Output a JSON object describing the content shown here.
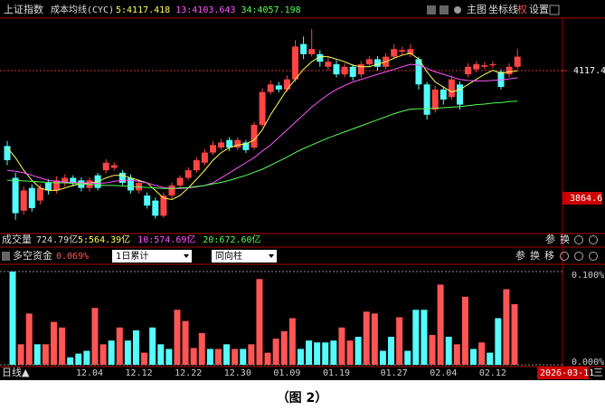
{
  "header": {
    "symbol": "上证指数",
    "indicator": "成本均线(CYC)",
    "buttons": [
      "主图",
      "坐标线",
      "权",
      "设置"
    ]
  },
  "volume_header": {
    "title": "成交量",
    "value": "724.79亿",
    "mas": [
      {
        "label": "5:564.39亿",
        "color": "#ffff55"
      },
      {
        "label": "10:574.69亿",
        "color": "#ff55ff"
      },
      {
        "label": "20:672.60亿",
        "color": "#55ff55"
      }
    ],
    "tools": [
      "参",
      "换"
    ]
  },
  "chart_data": [
    {
      "type": "candlestick",
      "up_color": "#ff4444",
      "down_color": "#54fcfc",
      "categories": [
        null,
        null,
        null,
        null,
        null,
        null,
        null,
        null,
        null,
        null,
        "12.04",
        null,
        null,
        null,
        null,
        null,
        "12.12",
        null,
        null,
        null,
        null,
        null,
        "12.22",
        null,
        null,
        null,
        null,
        null,
        "12.30",
        null,
        null,
        null,
        null,
        null,
        "01.09",
        null,
        null,
        null,
        null,
        null,
        "01.19",
        null,
        null,
        null,
        null,
        null,
        null,
        "01.27",
        null,
        null,
        null,
        null,
        null,
        "02.04",
        null,
        null,
        null,
        null,
        null,
        "02.12",
        null,
        null,
        null
      ],
      "open": [
        3968,
        3905,
        3840,
        3885,
        3860,
        3895,
        3880,
        3895,
        3905,
        3900,
        3885,
        3910,
        3920,
        3925,
        3915,
        3905,
        3880,
        3870,
        3860,
        3830,
        3870,
        3890,
        3905,
        3920,
        3935,
        3955,
        3965,
        3980,
        3965,
        3975,
        3965,
        4010,
        4075,
        4088,
        4080,
        4100,
        4170,
        4150,
        4150,
        4125,
        4130,
        4110,
        4125,
        4110,
        4130,
        4140,
        4125,
        4145,
        4155,
        4150,
        4140,
        4090,
        4040,
        4080,
        4065,
        4090,
        4110,
        4120,
        4125,
        4128,
        4115,
        4110,
        4125
      ],
      "high": [
        3978,
        3915,
        3888,
        3892,
        3892,
        3902,
        3908,
        3912,
        3910,
        3906,
        3906,
        3915,
        3942,
        3936,
        3920,
        3912,
        3902,
        3876,
        3866,
        3876,
        3896,
        3910,
        3926,
        3946,
        3962,
        3978,
        3982,
        3986,
        3986,
        3980,
        4016,
        4082,
        4098,
        4095,
        4108,
        4178,
        4185,
        4200,
        4158,
        4145,
        4138,
        4132,
        4130,
        4136,
        4146,
        4146,
        4152,
        4170,
        4165,
        4170,
        4145,
        4095,
        4088,
        4086,
        4108,
        4096,
        4132,
        4136,
        4134,
        4136,
        4120,
        4132,
        4160
      ],
      "low": [
        3930,
        3822,
        3832,
        3838,
        3852,
        3872,
        3874,
        3888,
        3888,
        3878,
        3878,
        3880,
        3914,
        3920,
        3890,
        3874,
        3874,
        3844,
        3824,
        3826,
        3864,
        3885,
        3900,
        3915,
        3930,
        3950,
        3960,
        3958,
        3960,
        3954,
        3960,
        4005,
        4070,
        4074,
        4075,
        4095,
        4140,
        4145,
        4125,
        4118,
        4104,
        4104,
        4098,
        4104,
        4124,
        4118,
        4120,
        4140,
        4148,
        4144,
        4080,
        4020,
        4034,
        4050,
        4060,
        4040,
        4104,
        4114,
        4120,
        4122,
        4080,
        4104,
        4120
      ],
      "close": [
        3940,
        3835,
        3880,
        3845,
        3885,
        3880,
        3900,
        3905,
        3895,
        3885,
        3900,
        3885,
        3935,
        3930,
        3895,
        3880,
        3895,
        3850,
        3830,
        3870,
        3890,
        3905,
        3920,
        3940,
        3955,
        3970,
        3975,
        3965,
        3980,
        3960,
        4010,
        4075,
        4090,
        4080,
        4100,
        4165,
        4150,
        4160,
        4135,
        4135,
        4110,
        4125,
        4105,
        4130,
        4140,
        4125,
        4145,
        4160,
        4158,
        4160,
        4090,
        4030,
        4080,
        4060,
        4100,
        4050,
        4125,
        4130,
        4128,
        4130,
        4085,
        4125,
        4145
      ],
      "series": [
        {
          "name": "5:4117.418",
          "color": "#ffff55",
          "values": [
            3965,
            3945,
            3920,
            3900,
            3885,
            3880,
            3880,
            3885,
            3890,
            3893,
            3895,
            3897,
            3905,
            3910,
            3910,
            3905,
            3900,
            3895,
            3880,
            3865,
            3862,
            3870,
            3885,
            3902,
            3920,
            3940,
            3955,
            3965,
            3970,
            3972,
            3980,
            4000,
            4030,
            4055,
            4080,
            4100,
            4120,
            4135,
            4145,
            4145,
            4140,
            4135,
            4128,
            4125,
            4125,
            4130,
            4135,
            4142,
            4148,
            4152,
            4140,
            4115,
            4095,
            4085,
            4075,
            4080,
            4090,
            4100,
            4110,
            4118,
            4112,
            4115,
            4117
          ]
        },
        {
          "name": "13:4103.643",
          "color": "#ff55ff",
          "values": [
            3920,
            3918,
            3915,
            3910,
            3905,
            3900,
            3898,
            3897,
            3896,
            3895,
            3895,
            3894,
            3895,
            3898,
            3900,
            3900,
            3898,
            3895,
            3890,
            3886,
            3884,
            3884,
            3885,
            3887,
            3890,
            3895,
            3905,
            3915,
            3925,
            3935,
            3945,
            3958,
            3970,
            3985,
            4000,
            4015,
            4030,
            4045,
            4058,
            4070,
            4080,
            4088,
            4095,
            4100,
            4105,
            4110,
            4115,
            4120,
            4125,
            4130,
            4128,
            4122,
            4115,
            4110,
            4105,
            4100,
            4098,
            4097,
            4097,
            4098,
            4099,
            4101,
            4103
          ]
        },
        {
          "name": "34:4057.198",
          "color": "#55ff55",
          "values": [
            3900,
            3900,
            3899,
            3898,
            3897,
            3896,
            3895,
            3895,
            3894,
            3893,
            3892,
            3891,
            3890,
            3890,
            3889,
            3888,
            3887,
            3886,
            3885,
            3884,
            3884,
            3885,
            3886,
            3888,
            3890,
            3893,
            3896,
            3900,
            3905,
            3910,
            3916,
            3922,
            3930,
            3938,
            3946,
            3955,
            3963,
            3970,
            3977,
            3984,
            3990,
            3996,
            4002,
            4008,
            4014,
            4020,
            4026,
            4032,
            4037,
            4041,
            4042,
            4042,
            4043,
            4044,
            4045,
            4046,
            4048,
            4050,
            4051,
            4053,
            4054,
            4056,
            4057
          ]
        }
      ],
      "ylim": [
        3794.7,
        4221.4
      ],
      "yticks": [
        4117.4
      ],
      "low_label": 3864.6,
      "x_axis_title": "日线▲",
      "date": "2026-03-11",
      "menu": "三"
    },
    {
      "type": "bar",
      "title": "多空资金",
      "subtitle": "0.069%",
      "controls": [
        "1日累计",
        "同向柱"
      ],
      "tools": [
        "参",
        "换",
        "移"
      ],
      "values": [
        0.1,
        0.022,
        0.055,
        0.022,
        0.022,
        0.046,
        0.04,
        0.008,
        0.012,
        0.015,
        0.061,
        0.022,
        0.026,
        0.04,
        0.026,
        0.037,
        0.013,
        0.04,
        0.022,
        0.017,
        0.059,
        0.047,
        0.018,
        0.034,
        0.017,
        0.017,
        0.022,
        0.017,
        0.017,
        0.022,
        0.092,
        0.013,
        0.028,
        0.036,
        0.05,
        0.017,
        0.026,
        0.024,
        0.024,
        0.026,
        0.04,
        0.026,
        0.03,
        0.057,
        0.055,
        0.015,
        0.03,
        0.051,
        0.015,
        0.059,
        0.059,
        0.032,
        0.086,
        0.03,
        0.022,
        0.073,
        0.017,
        0.024,
        0.013,
        0.05,
        0.081,
        0.065
      ],
      "colors": [
        "#54fcfc",
        "#ff5555",
        "#ff5555",
        "#54fcfc",
        "#ff5555",
        "#ff5555",
        "#ff5555",
        "#54fcfc",
        "#54fcfc",
        "#54fcfc",
        "#ff5555",
        "#ff5555",
        "#54fcfc",
        "#ff5555",
        "#54fcfc",
        "#54fcfc",
        "#ff5555",
        "#54fcfc",
        "#54fcfc",
        "#54fcfc",
        "#ff5555",
        "#ff5555",
        "#ff5555",
        "#ff5555",
        "#54fcfc",
        "#ff5555",
        "#54fcfc",
        "#ff5555",
        "#54fcfc",
        "#ff5555",
        "#ff5555",
        "#ff5555",
        "#ff5555",
        "#ff5555",
        "#ff5555",
        "#54fcfc",
        "#54fcfc",
        "#54fcfc",
        "#54fcfc",
        "#54fcfc",
        "#ff5555",
        "#ff5555",
        "#54fcfc",
        "#ff5555",
        "#ff5555",
        "#54fcfc",
        "#54fcfc",
        "#ff5555",
        "#54fcfc",
        "#54fcfc",
        "#54fcfc",
        "#ff5555",
        "#ff5555",
        "#54fcfc",
        "#ff5555",
        "#ff5555",
        "#54fcfc",
        "#ff5555",
        "#54fcfc",
        "#54fcfc",
        "#ff5555",
        "#ff5555"
      ],
      "ylim": [
        0,
        0.1
      ],
      "yticks": [
        {
          "value": 0.1,
          "label": "0.100%"
        },
        {
          "value": 0,
          "label": "0.000%"
        }
      ]
    }
  ],
  "caption": "（图 2）"
}
